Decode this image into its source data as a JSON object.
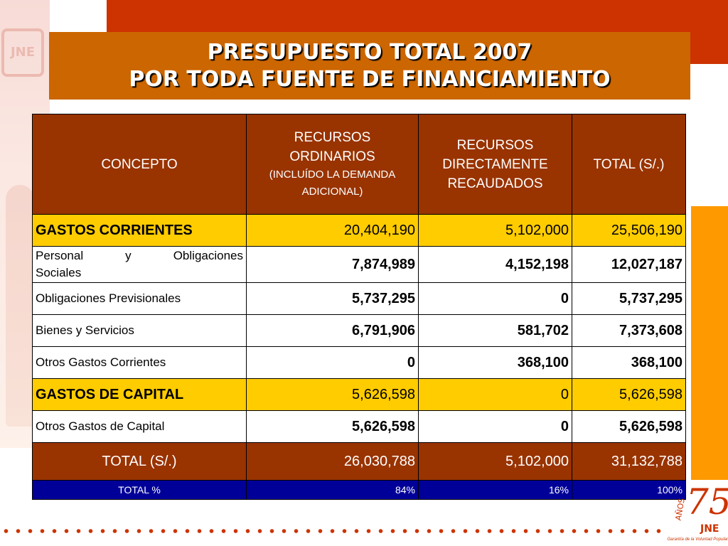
{
  "title": {
    "line1": "PRESUPUESTO TOTAL 2007",
    "line2": "POR TODA FUENTE DE FINANCIAMIENTO"
  },
  "watermark_logo": "JNE",
  "table": {
    "headers": {
      "concepto": "CONCEPTO",
      "ro_line1": "RECURSOS",
      "ro_line2": "ORDINARIOS",
      "ro_sub1": "(INCLUÍDO LA DEMANDA",
      "ro_sub2": "ADICIONAL)",
      "rdr_line1": "RECURSOS",
      "rdr_line2": "DIRECTAMENTE",
      "rdr_line3": "RECAUDADOS",
      "total": "TOTAL (S/.)"
    },
    "rows": [
      {
        "concepto": "GASTOS CORRIENTES",
        "ro": "20,404,190",
        "rdr": "5,102,000",
        "total": "25,506,190"
      },
      {
        "concepto_a": "Personal y Obligaciones",
        "concepto_b": "Sociales",
        "ro": "7,874,989",
        "rdr": "4,152,198",
        "total": "12,027,187"
      },
      {
        "concepto": "Obligaciones Previsionales",
        "ro": "5,737,295",
        "rdr": "0",
        "total": "5,737,295"
      },
      {
        "concepto": "Bienes y Servicios",
        "ro": "6,791,906",
        "rdr": "581,702",
        "total": "7,373,608"
      },
      {
        "concepto": "Otros Gastos Corrientes",
        "ro": "0",
        "rdr": "368,100",
        "total": "368,100"
      },
      {
        "concepto": "GASTOS DE CAPITAL",
        "ro": "5,626,598",
        "rdr": "0",
        "total": "5,626,598"
      },
      {
        "concepto": "Otros Gastos de Capital",
        "ro": "5,626,598",
        "rdr": "0",
        "total": "5,626,598"
      }
    ],
    "total_row": {
      "concepto": "TOTAL (S/.)",
      "ro": "26,030,788",
      "rdr": "5,102,000",
      "total": "31,132,788"
    },
    "pct_row": {
      "concepto": "TOTAL %",
      "ro": "84%",
      "rdr": "16%",
      "total": "100%"
    }
  },
  "anniversary": {
    "number": "75",
    "anos": "AÑOS",
    "org": "JNE",
    "slogan": "Garantía de la Voluntad Popular"
  },
  "colors": {
    "title_bg": "#cc6600",
    "header_bg": "#993300",
    "section_bg": "#ffcc00",
    "pct_bg": "#000099",
    "accent_red": "#cc3300",
    "accent_orange": "#ff9900"
  }
}
